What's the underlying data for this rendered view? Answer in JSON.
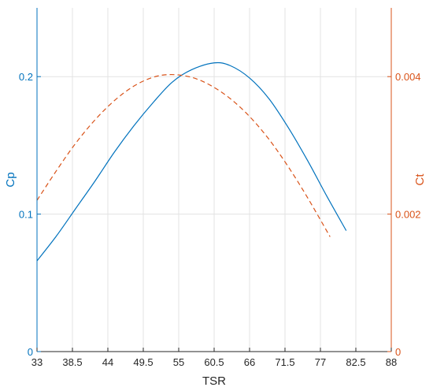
{
  "chart_data": {
    "type": "line",
    "xlabel": "TSR",
    "x_ticks": [
      33,
      38.5,
      44,
      49.5,
      55,
      60.5,
      66,
      71.5,
      77,
      82.5,
      88
    ],
    "xlim": [
      33,
      88
    ],
    "grid": true,
    "y_left": {
      "label": "Cp",
      "lim": [
        0,
        0.25
      ],
      "ticks": [
        0,
        0.1,
        0.2
      ],
      "tick_labels": [
        "0",
        "0.1",
        "0.2"
      ],
      "color": "#0072BD"
    },
    "y_right": {
      "label": "Ct",
      "lim": [
        0,
        0.005
      ],
      "ticks": [
        0,
        0.002,
        0.004
      ],
      "tick_labels": [
        "0",
        "0.002",
        "0.004"
      ],
      "color": "#D95319"
    },
    "series": [
      {
        "axis": "left",
        "style": "solid",
        "color": "#0072BD",
        "x": [
          33,
          36,
          39,
          42,
          45,
          48,
          51,
          54,
          57,
          60.5,
          63,
          66,
          69,
          72,
          75,
          78,
          81
        ],
        "y": [
          0.066,
          0.084,
          0.104,
          0.124,
          0.145,
          0.164,
          0.181,
          0.196,
          0.205,
          0.21,
          0.208,
          0.199,
          0.184,
          0.163,
          0.139,
          0.113,
          0.088
        ]
      },
      {
        "axis": "right",
        "style": "dashed",
        "color": "#D95319",
        "x": [
          33,
          36,
          39,
          42,
          45,
          48,
          51,
          53.8,
          57,
          60,
          63,
          66,
          69,
          72,
          75,
          78.5
        ],
        "y": [
          0.0022,
          0.00263,
          0.00303,
          0.00337,
          0.00365,
          0.00386,
          0.00399,
          0.00403,
          0.00399,
          0.00387,
          0.00368,
          0.00342,
          0.00309,
          0.00269,
          0.00224,
          0.00167
        ]
      }
    ]
  }
}
